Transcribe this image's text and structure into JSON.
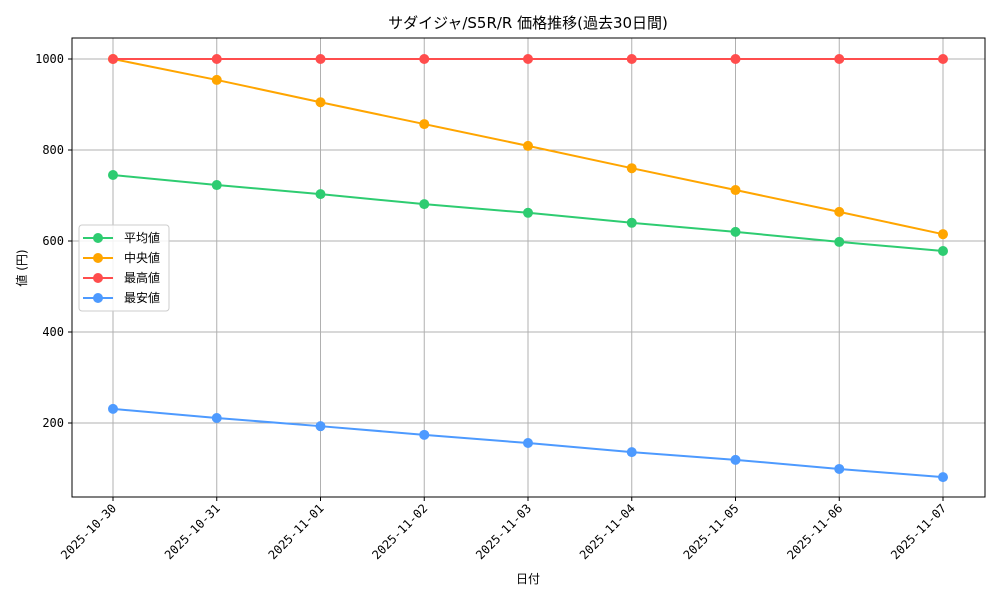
{
  "chart_data": {
    "type": "line",
    "title": "サダイジャ/S5R/R 価格推移(過去30日間)",
    "xlabel": "日付",
    "ylabel": "値 (円)",
    "categories": [
      "2025-10-30",
      "2025-10-31",
      "2025-11-01",
      "2025-11-02",
      "2025-11-03",
      "2025-11-04",
      "2025-11-05",
      "2025-11-06",
      "2025-11-07"
    ],
    "yticks": [
      200,
      400,
      600,
      800,
      1000
    ],
    "ylim": [
      36,
      1050
    ],
    "grid": true,
    "legend_position": "center left",
    "series": [
      {
        "name": "平均値",
        "color": "#2ecc71",
        "values": [
          745,
          723,
          703,
          681,
          662,
          640,
          620,
          598,
          578
        ]
      },
      {
        "name": "中央値",
        "color": "#ffa500",
        "values": [
          1000,
          954,
          905,
          857,
          809,
          760,
          712,
          664,
          615
        ]
      },
      {
        "name": "最高値",
        "color": "#ff4d4d",
        "values": [
          1000,
          1000,
          1000,
          1000,
          1000,
          1000,
          1000,
          1000,
          1000
        ]
      },
      {
        "name": "最安値",
        "color": "#4d9aff",
        "values": [
          231,
          211,
          193,
          174,
          156,
          136,
          119,
          99,
          81
        ]
      }
    ]
  }
}
